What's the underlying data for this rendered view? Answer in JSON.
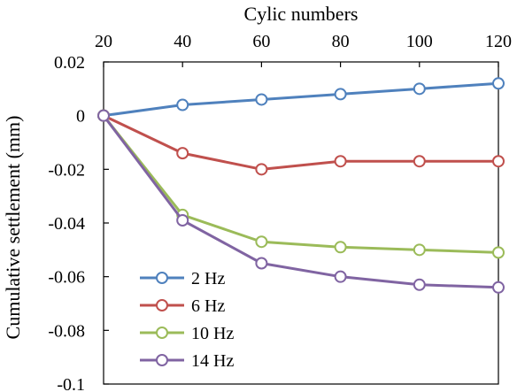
{
  "chart_data": {
    "type": "line",
    "xlabel": "Cylic numbers",
    "ylabel": "Cumulative settlement (mm)",
    "x": [
      20,
      40,
      60,
      80,
      100,
      120
    ],
    "xlim": [
      20,
      120
    ],
    "ylim": [
      -0.1,
      0.02
    ],
    "x_ticks": [
      "20",
      "40",
      "60",
      "80",
      "100",
      "120"
    ],
    "y_ticks": [
      "0.02",
      "0",
      "-0.02",
      "-0.04",
      "-0.06",
      "-0.08",
      "-0.1"
    ],
    "x_axis_position": "top",
    "grid": false,
    "legend_position": "bottom-left",
    "series": [
      {
        "name": "2 Hz",
        "color": "#4F81BD",
        "values": [
          0,
          0.004,
          0.006,
          0.008,
          0.01,
          0.012
        ]
      },
      {
        "name": "6 Hz",
        "color": "#C0504D",
        "values": [
          0,
          -0.014,
          -0.02,
          -0.017,
          -0.017,
          -0.017
        ]
      },
      {
        "name": "10 Hz",
        "color": "#9BBB59",
        "values": [
          0,
          -0.037,
          -0.047,
          -0.049,
          -0.05,
          -0.051
        ]
      },
      {
        "name": "14 Hz",
        "color": "#8064A2",
        "values": [
          0,
          -0.039,
          -0.055,
          -0.06,
          -0.063,
          -0.064
        ]
      }
    ]
  }
}
